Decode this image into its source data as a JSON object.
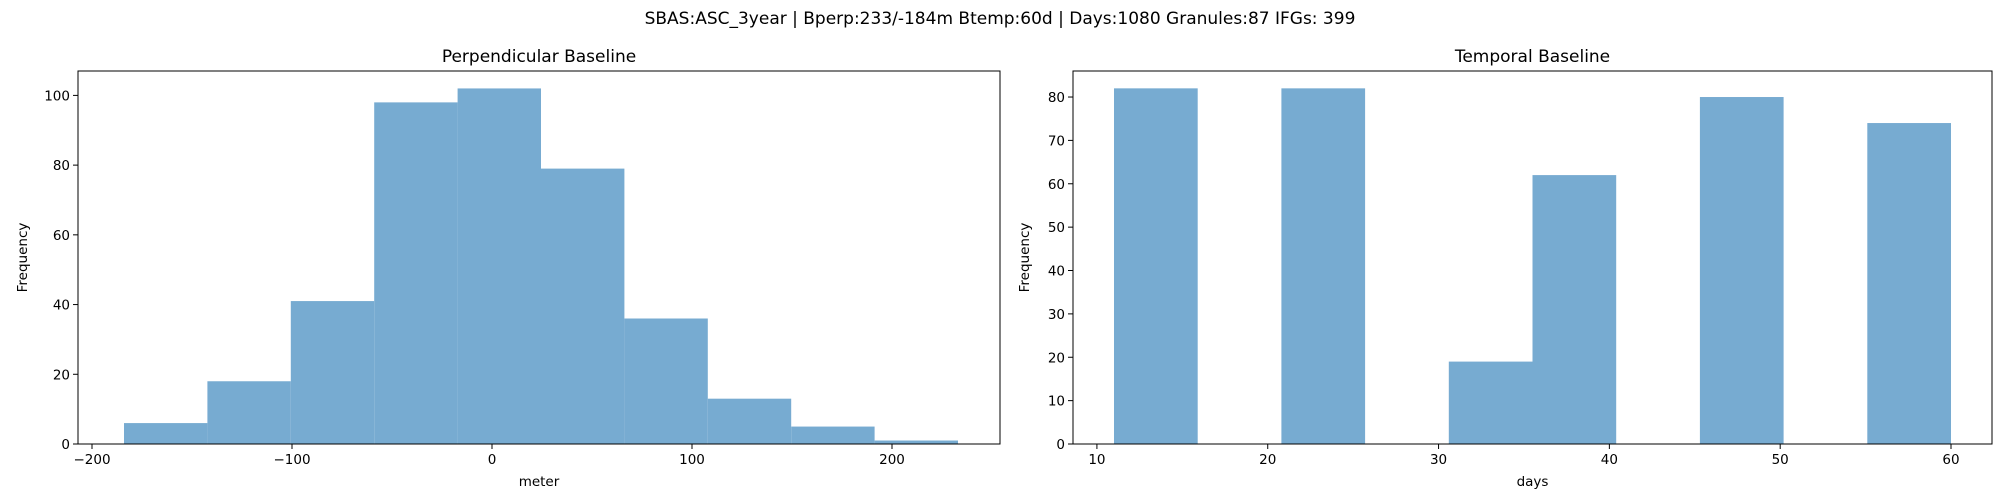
{
  "suptitle": "SBAS:ASC_3year | Bperp:233/-184m Btemp:60d | Days:1080 Granules:87 IFGs: 399",
  "chart_data": [
    {
      "type": "bar",
      "title": "Perpendicular Baseline",
      "xlabel": "meter",
      "ylabel": "Frequency",
      "color": "#77abd1",
      "xlim": [
        -207,
        254
      ],
      "ylim": [
        0,
        107
      ],
      "xticks": [
        -200,
        -100,
        0,
        100,
        200
      ],
      "xtick_labels": [
        "−200",
        "−100",
        "0",
        "100",
        "200"
      ],
      "yticks": [
        0,
        20,
        40,
        60,
        80,
        100
      ],
      "ytick_labels": [
        "0",
        "20",
        "40",
        "60",
        "80",
        "100"
      ],
      "bin_edges": [
        -184,
        -142.3,
        -100.6,
        -58.9,
        -17.2,
        24.5,
        66.2,
        107.9,
        149.6,
        191.3,
        233
      ],
      "values": [
        6,
        18,
        41,
        98,
        102,
        79,
        36,
        13,
        5,
        1
      ],
      "grid": false,
      "legend": "none"
    },
    {
      "type": "bar",
      "title": "Temporal Baseline",
      "xlabel": "days",
      "ylabel": "Frequency",
      "color": "#77abd1",
      "xlim": [
        8.6,
        62.4
      ],
      "ylim": [
        0,
        86
      ],
      "xticks": [
        10,
        20,
        30,
        40,
        50,
        60
      ],
      "xtick_labels": [
        "10",
        "20",
        "30",
        "40",
        "50",
        "60"
      ],
      "yticks": [
        0,
        10,
        20,
        30,
        40,
        50,
        60,
        70,
        80
      ],
      "ytick_labels": [
        "0",
        "10",
        "20",
        "30",
        "40",
        "50",
        "60",
        "70",
        "80"
      ],
      "bin_edges": [
        11,
        15.9,
        20.8,
        25.7,
        30.6,
        35.5,
        40.4,
        45.3,
        50.2,
        55.1,
        60
      ],
      "values": [
        82,
        0,
        82,
        0,
        19,
        62,
        0,
        80,
        0,
        74
      ],
      "grid": false,
      "legend": "none"
    }
  ]
}
